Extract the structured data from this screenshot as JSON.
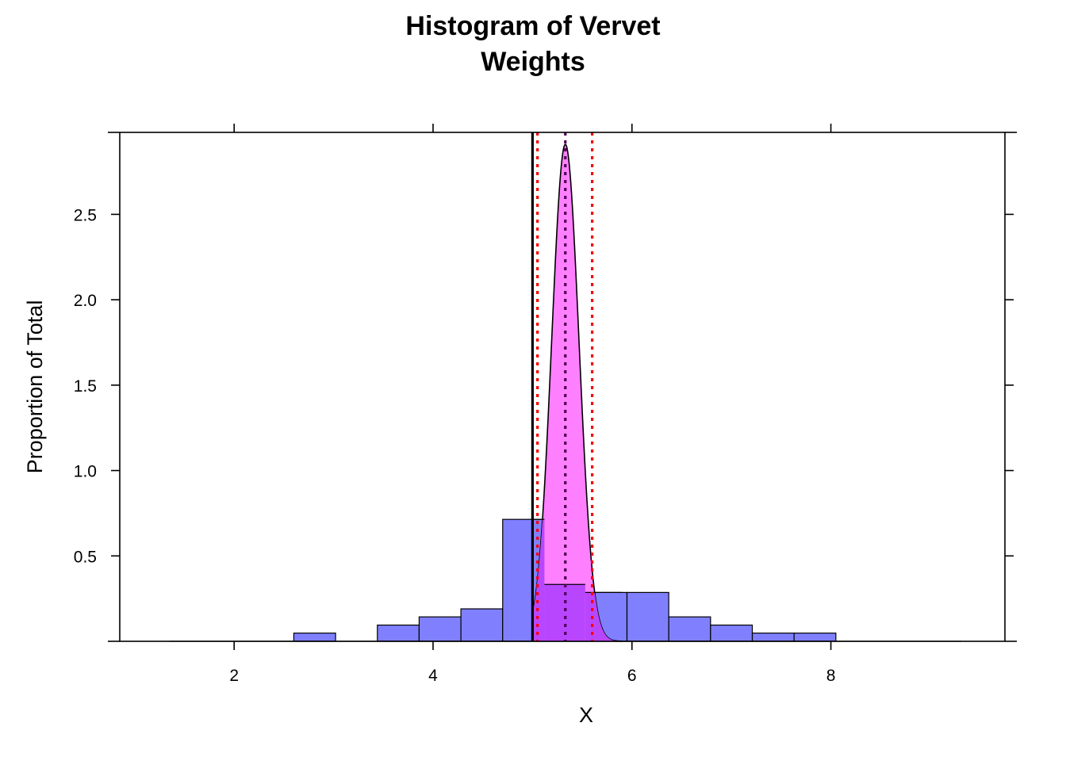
{
  "chart_data": {
    "type": "bar",
    "title_lines": [
      "Histogram of Vervet",
      "Weights"
    ],
    "xlabel": "X",
    "ylabel": "Proportion of Total",
    "xlim": [
      0.85,
      9.75
    ],
    "ylim": [
      0,
      2.98
    ],
    "x_ticks": [
      2,
      4,
      6,
      8
    ],
    "x_tick_labels": [
      "2",
      "4",
      "6",
      "8"
    ],
    "y_ticks": [
      0.5,
      1.0,
      1.5,
      2.0,
      2.5
    ],
    "y_tick_labels": [
      "0.5",
      "1.0",
      "1.5",
      "2.0",
      "2.5"
    ],
    "histogram": {
      "color": "#8080ff",
      "bins": [
        {
          "x0": 1.35,
          "x1": 1.76,
          "value": 0
        },
        {
          "x0": 1.76,
          "x1": 2.18,
          "value": 0
        },
        {
          "x0": 2.18,
          "x1": 2.6,
          "value": 0
        },
        {
          "x0": 2.6,
          "x1": 3.02,
          "value": 0.048
        },
        {
          "x0": 3.02,
          "x1": 3.44,
          "value": 0
        },
        {
          "x0": 3.44,
          "x1": 3.86,
          "value": 0.095
        },
        {
          "x0": 3.86,
          "x1": 4.28,
          "value": 0.143
        },
        {
          "x0": 4.28,
          "x1": 4.7,
          "value": 0.19
        },
        {
          "x0": 4.7,
          "x1": 5.12,
          "value": 0.714
        },
        {
          "x0": 5.12,
          "x1": 5.53,
          "value": 0.333
        },
        {
          "x0": 5.53,
          "x1": 5.95,
          "value": 0.286
        },
        {
          "x0": 5.95,
          "x1": 6.37,
          "value": 0.286
        },
        {
          "x0": 6.37,
          "x1": 6.79,
          "value": 0.143
        },
        {
          "x0": 6.79,
          "x1": 7.21,
          "value": 0.095
        },
        {
          "x0": 7.21,
          "x1": 7.63,
          "value": 0.048
        },
        {
          "x0": 7.63,
          "x1": 8.05,
          "value": 0.048
        },
        {
          "x0": 8.05,
          "x1": 8.47,
          "value": 0
        },
        {
          "x0": 8.47,
          "x1": 8.89,
          "value": 0
        },
        {
          "x0": 8.89,
          "x1": 9.31,
          "value": 0
        }
      ]
    },
    "density_curve": {
      "type": "normal",
      "mean": 5.33,
      "sd": 0.137,
      "peak": 2.91,
      "fill_color": "#ff80ff",
      "x_range": [
        5.0,
        5.9
      ]
    },
    "overlap_color": "#b946ff",
    "reference_lines": [
      {
        "x": 5.0,
        "style": "solid",
        "color": "#000000"
      },
      {
        "x": 5.33,
        "style": "dotted",
        "color": "#4b0050"
      },
      {
        "x": 5.05,
        "style": "dotted",
        "color": "#ff0000"
      },
      {
        "x": 5.6,
        "style": "dotted",
        "color": "#ff0000"
      }
    ],
    "grid": false,
    "legend": "none"
  }
}
